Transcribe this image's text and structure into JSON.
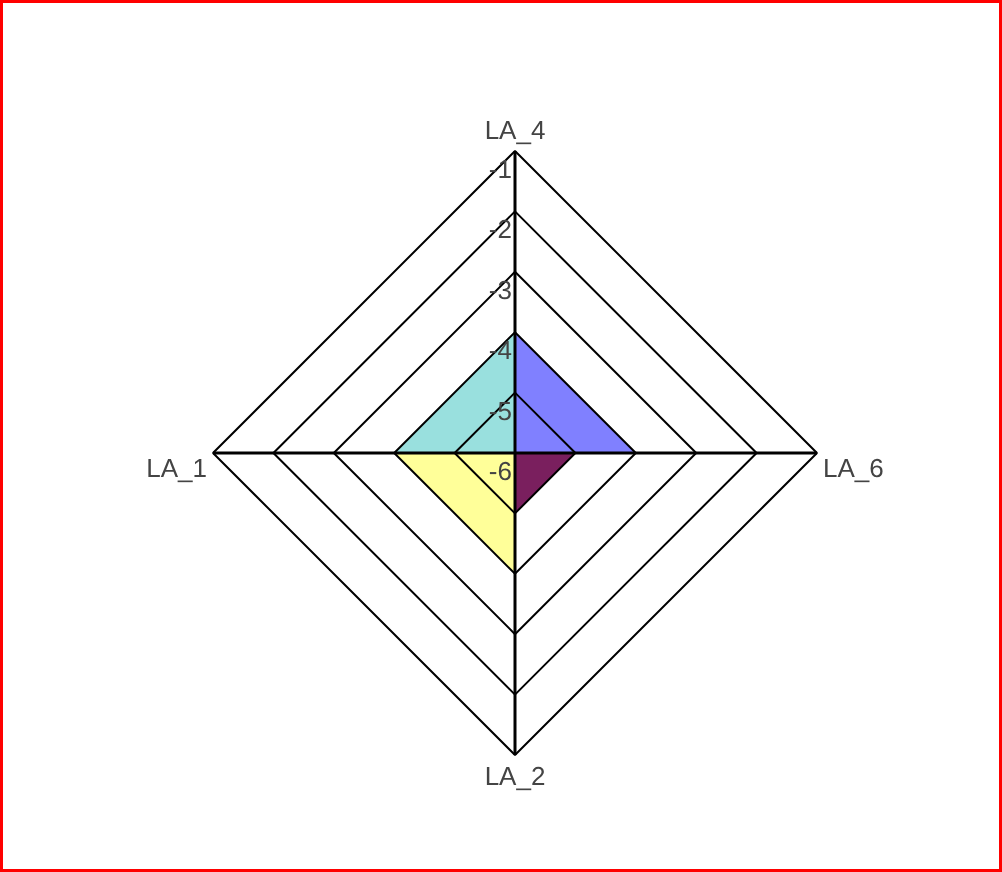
{
  "chart_data": {
    "type": "radar",
    "categories": [
      "LA_4",
      "LA_6",
      "LA_2",
      "LA_1"
    ],
    "series": [
      {
        "color": "#99e0de",
        "values": [
          -4,
          -6,
          -6,
          -4
        ]
      },
      {
        "color": "#8080ff",
        "values": [
          -4,
          -4,
          -6,
          -6
        ]
      },
      {
        "color": "#7a1f5e",
        "values": [
          -6,
          -5,
          -5,
          -6
        ]
      },
      {
        "color": "#ffff99",
        "values": [
          -6,
          -6,
          -4,
          -4
        ]
      }
    ],
    "ylim": [
      -6,
      -1
    ],
    "yticks": [
      -6,
      -5,
      -4,
      -3,
      -2,
      -1
    ],
    "grid": true
  }
}
